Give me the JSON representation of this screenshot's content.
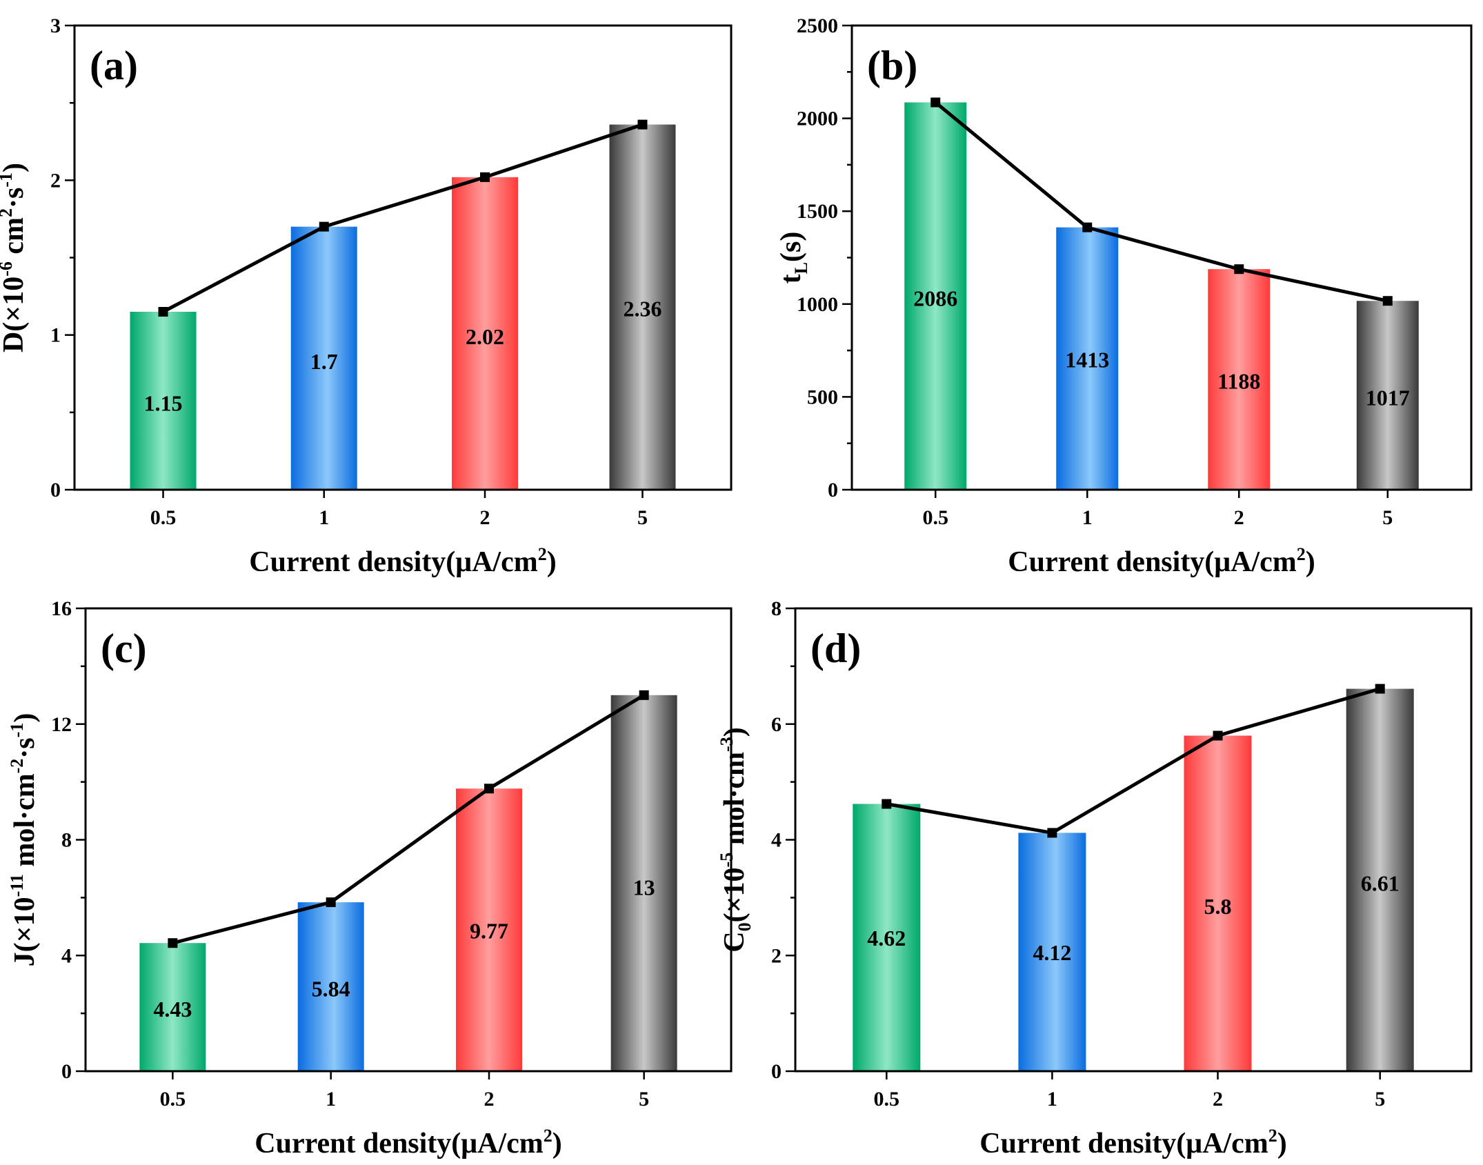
{
  "chart_data": [
    {
      "type": "bar",
      "panel": "(a)",
      "categories": [
        "0.5",
        "1",
        "2",
        "5"
      ],
      "values": [
        1.15,
        1.7,
        2.02,
        2.36
      ],
      "value_labels": [
        "1.15",
        "1.7",
        "2.02",
        "2.36"
      ],
      "xlabel": "Current density(μA/cm",
      "xlabel_sup": "2",
      "xlabel_tail": ")",
      "ylabel_parts": [
        {
          "t": "D(×10",
          "sup": false
        },
        {
          "t": "-6",
          "sup": true
        },
        {
          "t": " cm",
          "sup": false
        },
        {
          "t": "2",
          "sup": true
        },
        {
          "t": "·s",
          "sup": false
        },
        {
          "t": "-1",
          "sup": true
        },
        {
          "t": ")",
          "sup": false
        }
      ],
      "ylim": [
        0,
        3
      ],
      "yticks": [
        0,
        1,
        2,
        3
      ],
      "ytick_labels": [
        "0",
        "1",
        "2",
        "3"
      ],
      "minor_yticks": [
        0.5,
        1.5,
        2.5
      ],
      "label_y_values": [
        0.56,
        0.83,
        0.99,
        1.17
      ],
      "overlay_line": true
    },
    {
      "type": "bar",
      "panel": "(b)",
      "categories": [
        "0.5",
        "1",
        "2",
        "5"
      ],
      "values": [
        2086,
        1413,
        1188,
        1017
      ],
      "value_labels": [
        "2086",
        "1413",
        "1188",
        "1017"
      ],
      "xlabel": "Current density(μA/cm",
      "xlabel_sup": "2",
      "xlabel_tail": ")",
      "ylabel_parts": [
        {
          "t": "t",
          "sup": false
        },
        {
          "t": "L",
          "sub": true
        },
        {
          "t": "(s)",
          "sup": false
        }
      ],
      "ylim": [
        0,
        2500
      ],
      "yticks": [
        0,
        500,
        1000,
        1500,
        2000,
        2500
      ],
      "ytick_labels": [
        "0",
        "500",
        "1000",
        "1500",
        "2000",
        "2500"
      ],
      "minor_yticks": [
        250,
        750,
        1250,
        1750,
        2250
      ],
      "label_y_values": [
        1030,
        700,
        585,
        495
      ],
      "overlay_line": true
    },
    {
      "type": "bar",
      "panel": "(c)",
      "categories": [
        "0.5",
        "1",
        "2",
        "5"
      ],
      "values": [
        4.43,
        5.84,
        9.77,
        13.0
      ],
      "value_labels": [
        "4.43",
        "5.84",
        "9.77",
        "13"
      ],
      "xlabel": "Current density(μA/cm",
      "xlabel_sup": "2",
      "xlabel_tail": ")",
      "ylabel_parts": [
        {
          "t": "J(×10",
          "sup": false
        },
        {
          "t": "-11",
          "sup": true
        },
        {
          "t": " mol·cm",
          "sup": false
        },
        {
          "t": "-2",
          "sup": true
        },
        {
          "t": "·s",
          "sup": false
        },
        {
          "t": "-1",
          "sup": true
        },
        {
          "t": ")",
          "sup": false
        }
      ],
      "ylim": [
        0,
        16
      ],
      "yticks": [
        0,
        4,
        8,
        12,
        16
      ],
      "ytick_labels": [
        "0",
        "4",
        "8",
        "12",
        "16"
      ],
      "minor_yticks": [
        2,
        6,
        10,
        14
      ],
      "label_y_values": [
        2.15,
        2.85,
        4.85,
        6.35
      ],
      "overlay_line": true
    },
    {
      "type": "bar",
      "panel": "(d)",
      "categories": [
        "0.5",
        "1",
        "2",
        "5"
      ],
      "values": [
        4.62,
        4.12,
        5.8,
        6.61
      ],
      "value_labels": [
        "4.62",
        "4.12",
        "5.8",
        "6.61"
      ],
      "xlabel": "Current density(μA/cm",
      "xlabel_sup": "2",
      "xlabel_tail": ")",
      "ylabel_parts": [
        {
          "t": "C",
          "sup": false
        },
        {
          "t": "0",
          "sub": true
        },
        {
          "t": "(×10",
          "sup": false
        },
        {
          "t": "-5",
          "sup": true
        },
        {
          "t": " mol·cm",
          "sup": false
        },
        {
          "t": "-3",
          "sup": true
        },
        {
          "t": ")",
          "sup": false
        }
      ],
      "ylim": [
        0,
        8
      ],
      "yticks": [
        0,
        2,
        4,
        6,
        8
      ],
      "ytick_labels": [
        "0",
        "2",
        "4",
        "6",
        "8"
      ],
      "minor_yticks": [
        1,
        3,
        5,
        7
      ],
      "label_y_values": [
        2.3,
        2.05,
        2.85,
        3.25
      ],
      "overlay_line": true
    }
  ],
  "colors": {
    "green_dark": "#00a86b",
    "green_light": "#8ee8c4",
    "blue_dark": "#0a6de0",
    "blue_light": "#8cc8fa",
    "red_dark": "#ff3a3a",
    "red_light": "#ff9e9e",
    "gray_dark": "#3a3a3a",
    "gray_light": "#c8c8c8",
    "line": "#000000"
  }
}
